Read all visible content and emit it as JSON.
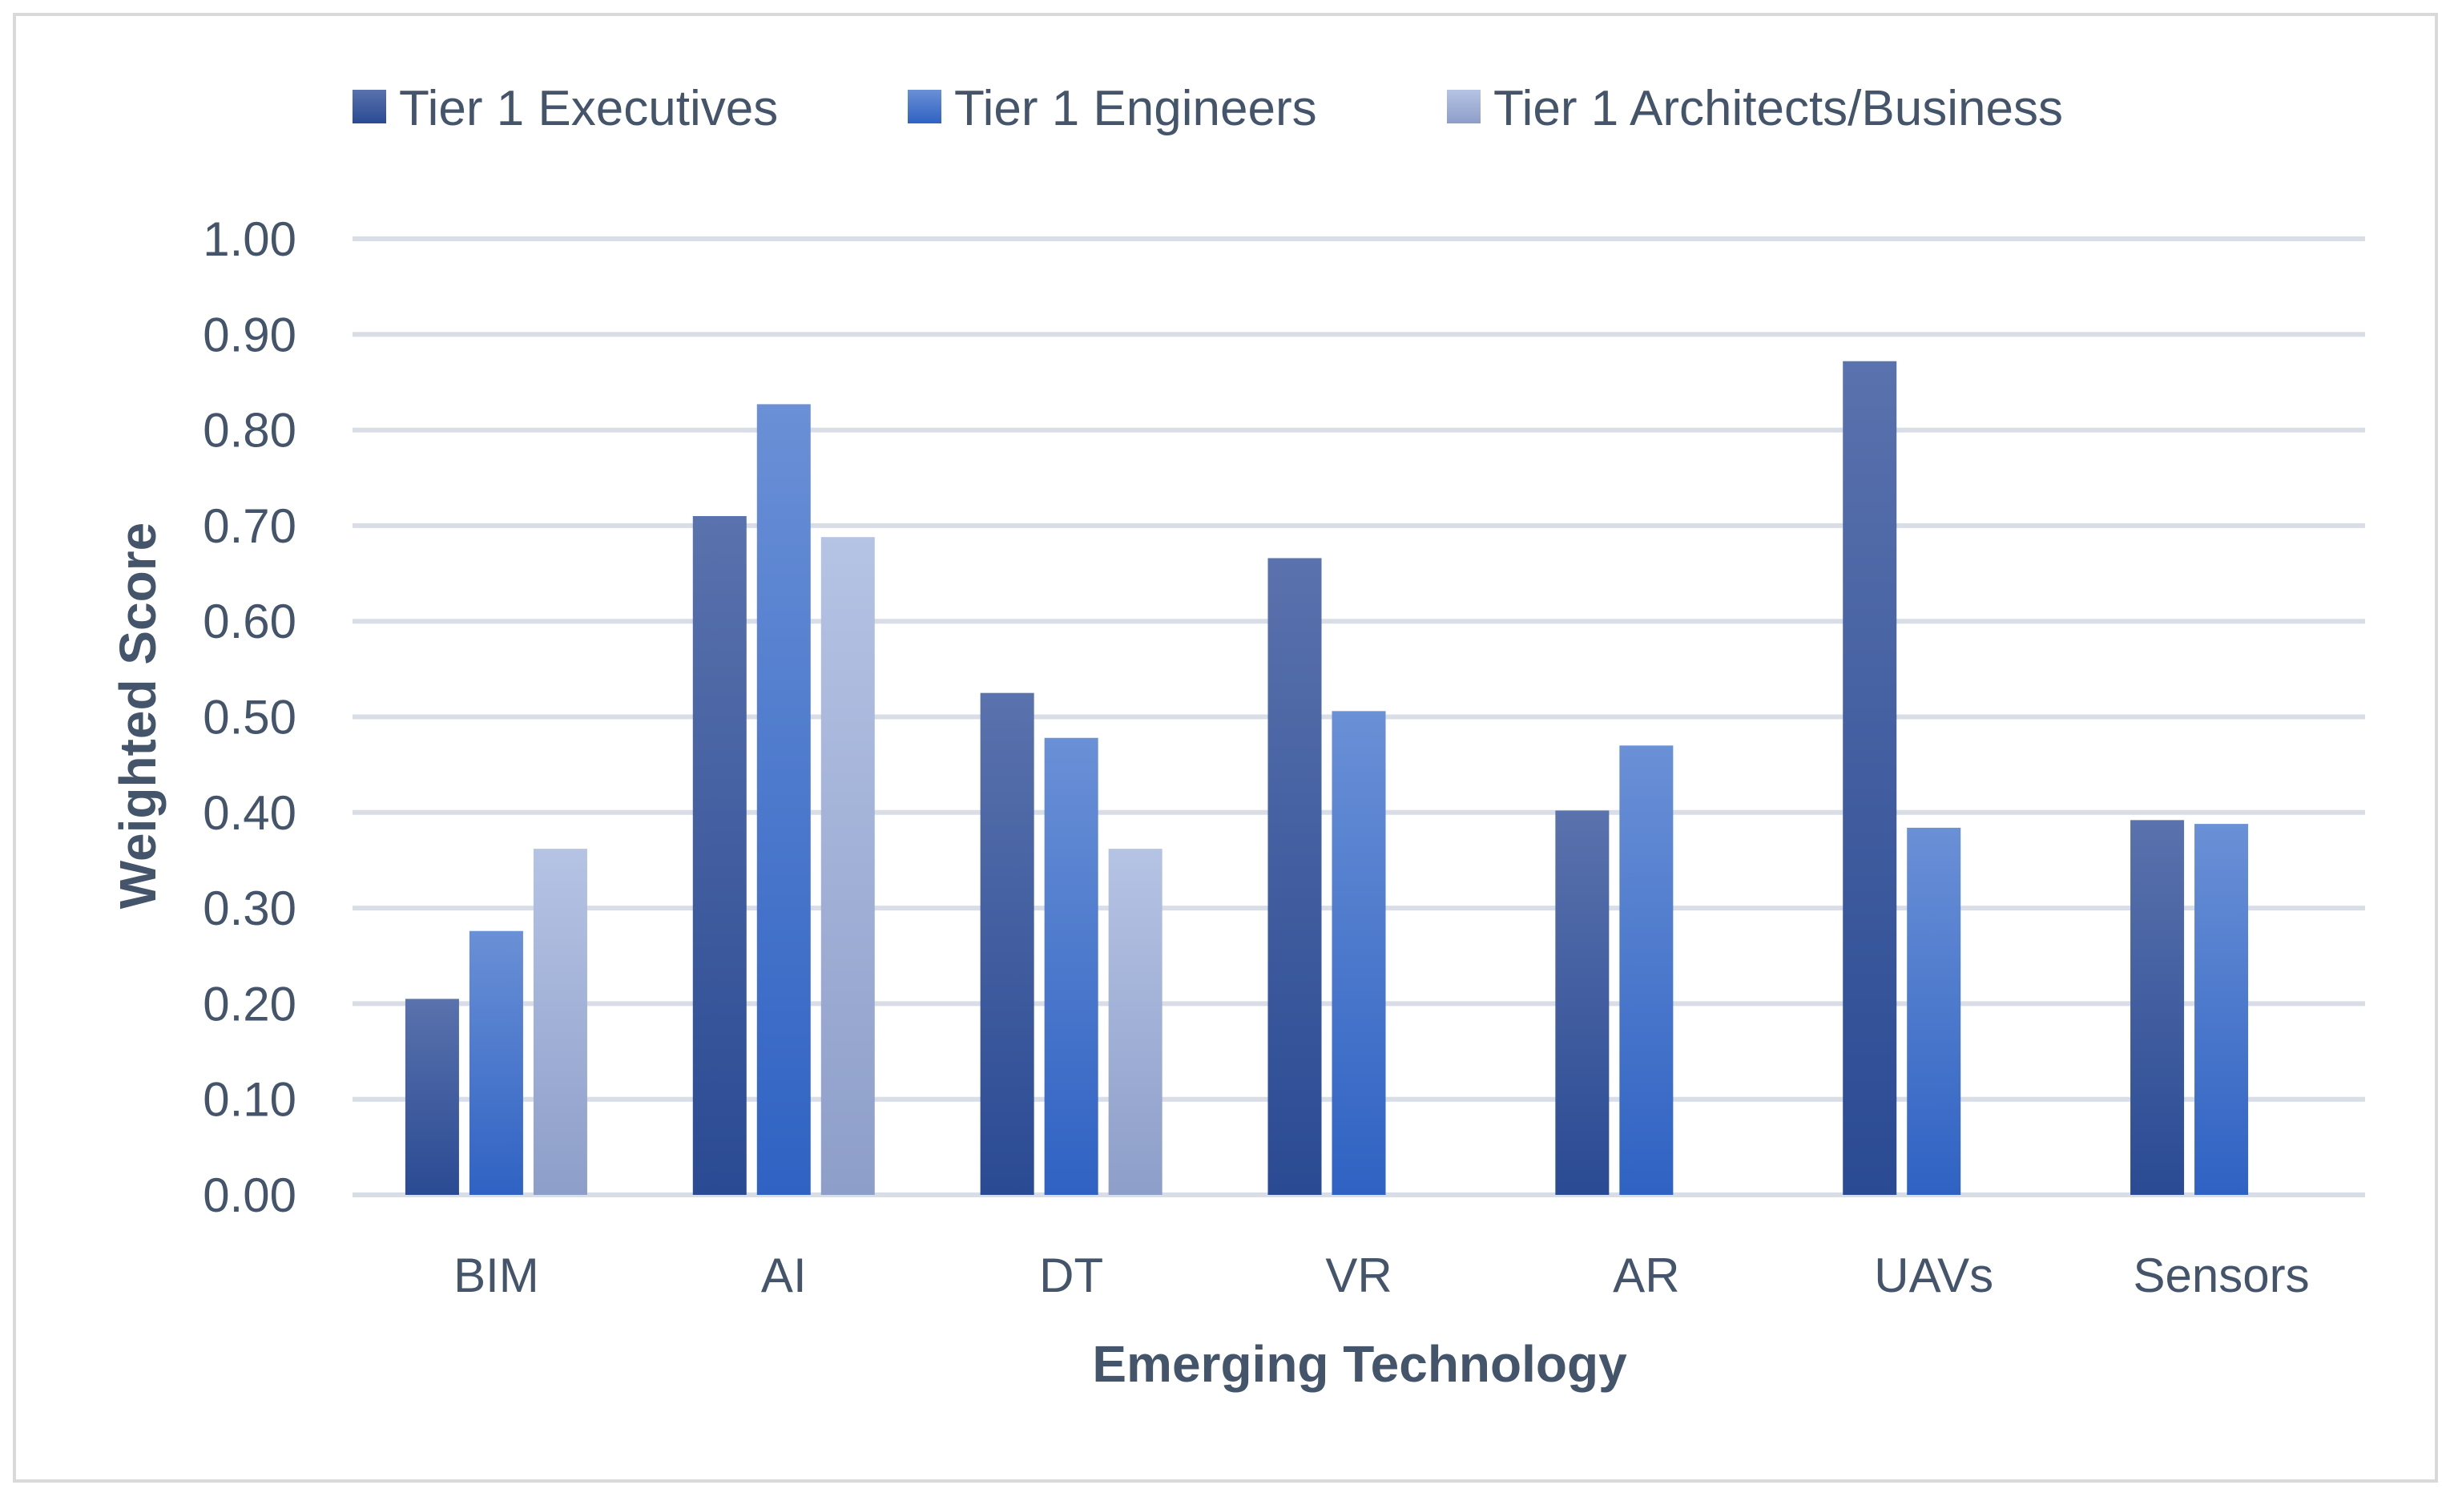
{
  "chart_data": {
    "type": "bar",
    "title": "",
    "xlabel": "Emerging Technology",
    "ylabel": "Weighted Score",
    "ylim": [
      0,
      1
    ],
    "yticks": [
      "0.00",
      "0.10",
      "0.20",
      "0.30",
      "0.40",
      "0.50",
      "0.60",
      "0.70",
      "0.80",
      "0.90",
      "1.00"
    ],
    "grid": true,
    "legend_position": "top",
    "categories": [
      "BIM",
      "AI",
      "DT",
      "VR",
      "AR",
      "UAVs",
      "Sensors"
    ],
    "series": [
      {
        "name": "Tier 1 Executives",
        "color_top": "#5a72ad",
        "color_bottom": "#2a4a93",
        "values": [
          0.205,
          0.71,
          0.525,
          0.666,
          0.402,
          0.872,
          0.392
        ]
      },
      {
        "name": "Tier 1 Engineers",
        "color_top": "#6a90d6",
        "color_bottom": "#2f62c3",
        "values": [
          0.276,
          0.827,
          0.478,
          0.506,
          0.47,
          0.384,
          0.388
        ]
      },
      {
        "name": "Tier 1 Architects/Business",
        "color_top": "#b5c3e4",
        "color_bottom": "#8d9ec9",
        "values": [
          0.362,
          0.688,
          0.362,
          null,
          null,
          null,
          null
        ]
      }
    ]
  }
}
